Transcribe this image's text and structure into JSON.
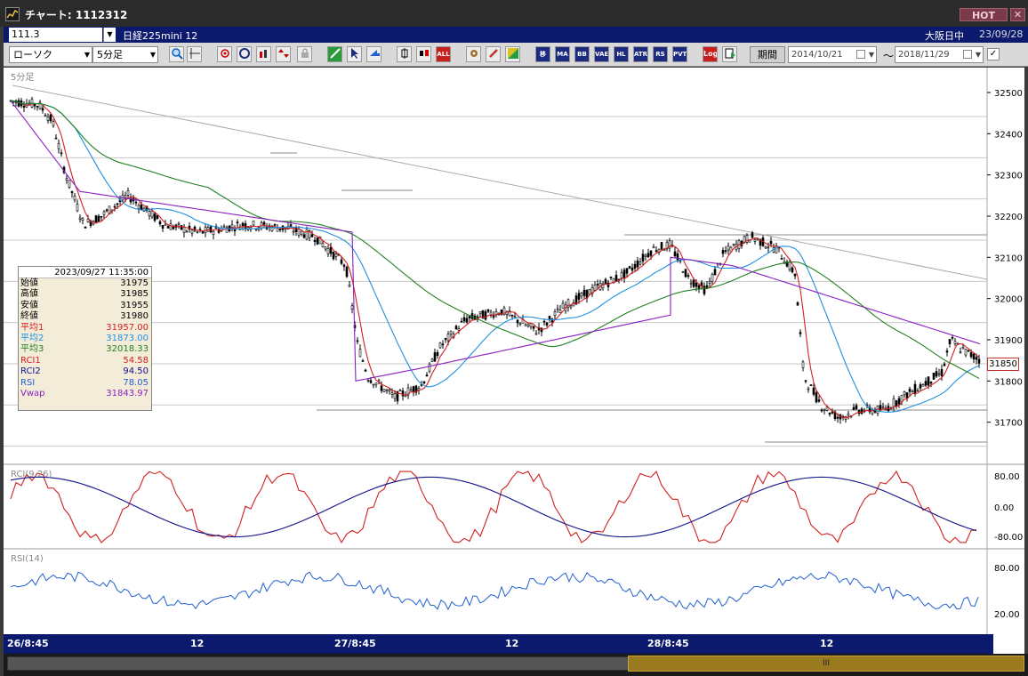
{
  "window": {
    "title": "チャート: 1112312",
    "hot_label": "HOT",
    "close_label": "✕"
  },
  "infobar": {
    "code": "111.3",
    "name": "日経225mini 12",
    "market": "大阪日中",
    "date": "23/09/28"
  },
  "toolbar": {
    "chart_type": "ローソク",
    "interval": "5分足",
    "buttons": [
      "search-icon",
      "crosshair-icon",
      "draw-icon",
      "zoom-icon",
      "bars-icon",
      "up-down-icon",
      "lock-icon",
      "pen-icon",
      "cursor-icon",
      "arrow-icon",
      "candle-icon",
      "candle2-icon",
      "all-icon",
      "settings-icon",
      "brush-icon",
      "color-icon"
    ],
    "indicator_buttons": [
      "移",
      "MA",
      "BB",
      "VAE",
      "HL",
      "ATR",
      "RS",
      "PVT"
    ],
    "log_label": "Log",
    "all_label": "ALL",
    "period_label": "期間",
    "date_from": "2014/10/21",
    "date_to": "2018/11/29",
    "tilde": "〜"
  },
  "chart": {
    "panel_label": "5分足",
    "price_ticks": [
      "32500",
      "32400",
      "32300",
      "32200",
      "32100",
      "32000",
      "31900",
      "31800",
      "31700"
    ],
    "rci_label": "RCI(9,26)",
    "rci_ticks": [
      "80.00",
      "0.00",
      "-80.00"
    ],
    "rsi_label": "RSI(14)",
    "rsi_ticks": [
      "80.00",
      "20.00"
    ],
    "last_price": "31850",
    "x_labels": [
      "26/8:45",
      "12",
      "27/8:45",
      "12",
      "28/8:45",
      "12"
    ],
    "colors": {
      "ma1": "#d22020",
      "ma2": "#2090e0",
      "ma3": "#208020",
      "vwap": "#8a20c0",
      "rci1": "#d22020",
      "rci2": "#10108a",
      "rsi": "#2060d0"
    }
  },
  "datawin": {
    "datetime": "2023/09/27  11:35:00",
    "rows": [
      {
        "k": "始値",
        "v": "31975",
        "c": "#000"
      },
      {
        "k": "高値",
        "v": "31985",
        "c": "#000"
      },
      {
        "k": "安値",
        "v": "31955",
        "c": "#000"
      },
      {
        "k": "終値",
        "v": "31980",
        "c": "#000"
      },
      {
        "k": "平均1",
        "v": "31957.00",
        "c": "#d22020"
      },
      {
        "k": "平均2",
        "v": "31873.00",
        "c": "#2090e0"
      },
      {
        "k": "平均3",
        "v": "32018.33",
        "c": "#208020"
      },
      {
        "k": "RCI1",
        "v": "54.58",
        "c": "#d22020"
      },
      {
        "k": "RCI2",
        "v": "94.50",
        "c": "#10108a"
      },
      {
        "k": "RSI",
        "v": "78.05",
        "c": "#2060d0"
      },
      {
        "k": "Vwap",
        "v": "31843.97",
        "c": "#8a20c0"
      }
    ]
  },
  "scroll": {
    "thumb_label": "III"
  }
}
